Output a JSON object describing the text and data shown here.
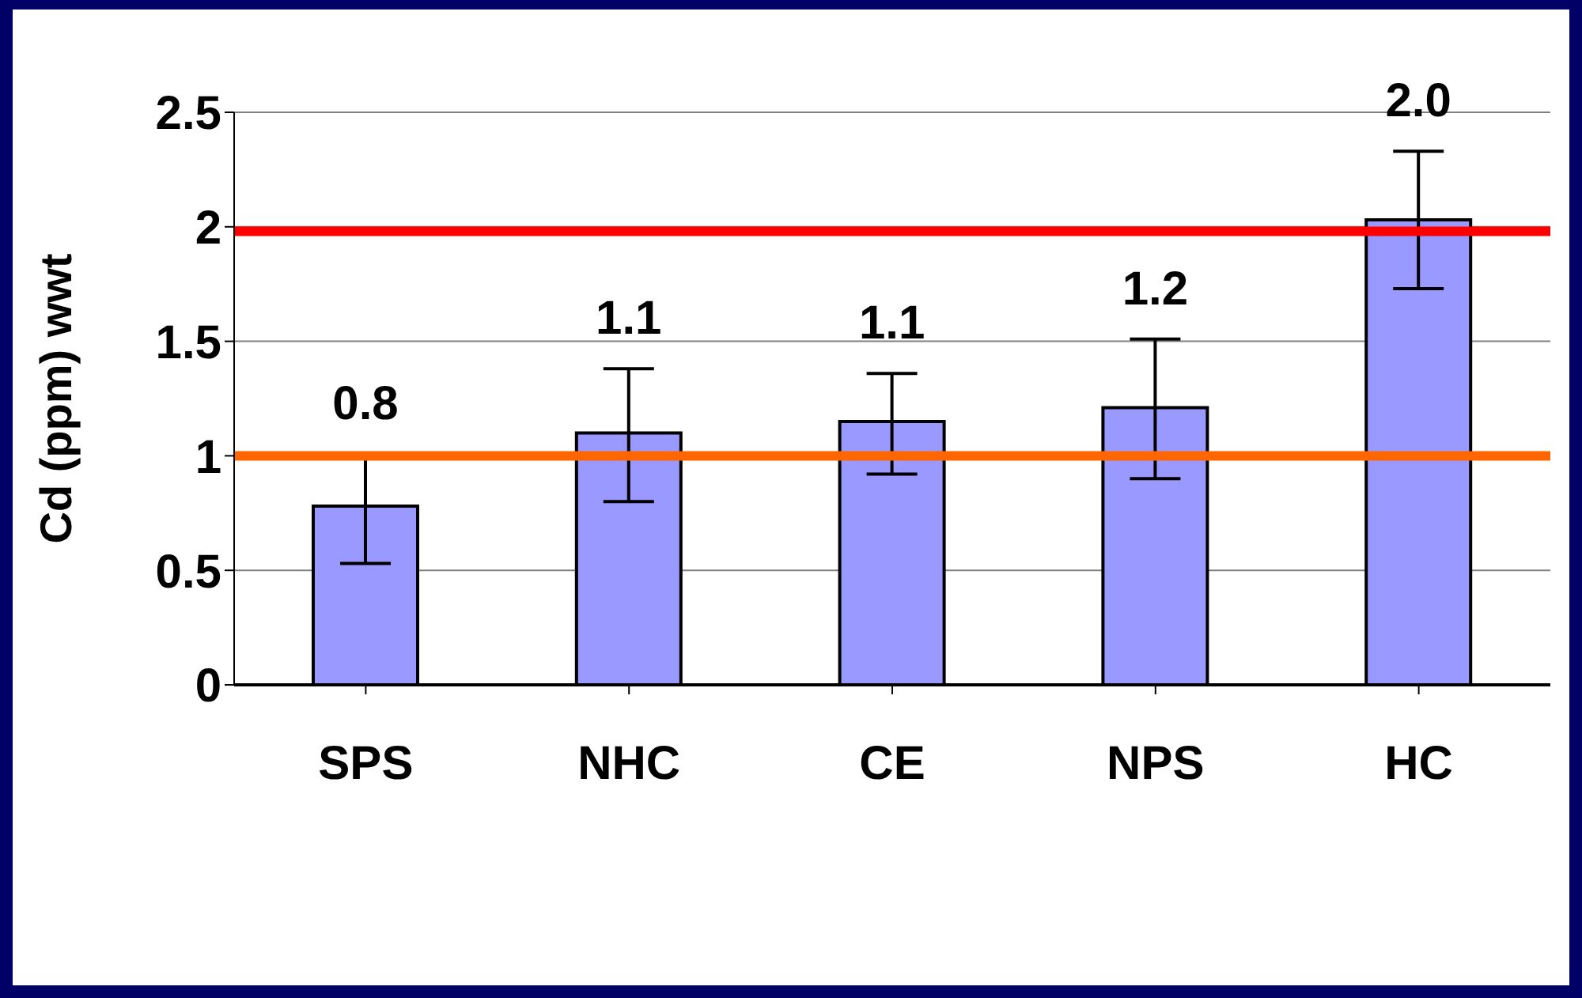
{
  "chart_data": {
    "type": "bar",
    "ylabel": "Cd (ppm) wwt",
    "categories": [
      "SPS",
      "NHC",
      "CE",
      "NPS",
      "HC"
    ],
    "values": [
      0.78,
      1.1,
      1.15,
      1.21,
      2.03
    ],
    "errors": [
      [
        0.53,
        1.01
      ],
      [
        0.8,
        1.38
      ],
      [
        0.92,
        1.36
      ],
      [
        0.9,
        1.51
      ],
      [
        1.73,
        2.33
      ]
    ],
    "value_labels": [
      "0.8",
      "1.1",
      "1.1",
      "1.2",
      "2.0"
    ],
    "color": "#9999ff",
    "ylim": [
      0,
      2.5
    ],
    "yticks": [
      0,
      0.5,
      1,
      1.5,
      2,
      2.5
    ],
    "grid": "y",
    "ref_lines": [
      {
        "axis": "y",
        "value": 1.98,
        "color": "#ff0000"
      },
      {
        "axis": "y",
        "value": 1,
        "color": "#ff6600"
      }
    ]
  }
}
